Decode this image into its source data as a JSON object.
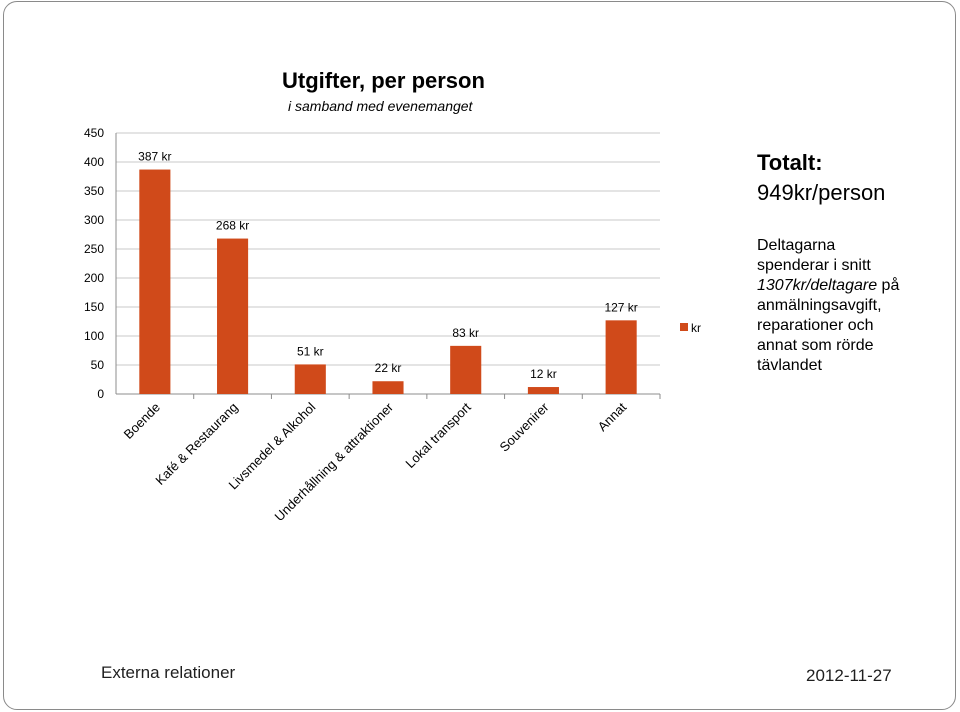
{
  "chart_data": {
    "type": "bar",
    "title": "Utgifter, per person",
    "subtitle": "i samband med evenemanget",
    "categories": [
      "Boende",
      "Kafé & Restaurang",
      "Livsmedel & Alkohol",
      "Underhållning & attraktioner",
      "Lokal transport",
      "Souvenirer",
      "Annat"
    ],
    "series": [
      {
        "name": "kr",
        "values": [
          387,
          268,
          51,
          22,
          83,
          12,
          127
        ]
      }
    ],
    "data_labels": [
      "387 kr",
      "268 kr",
      "51 kr",
      "22 kr",
      "83 kr",
      "12 kr",
      "127 kr"
    ],
    "ylim": [
      0,
      450
    ],
    "yticks": [
      0,
      50,
      100,
      150,
      200,
      250,
      300,
      350,
      400,
      450
    ],
    "grid": true,
    "legend": "right",
    "bar_color": "#d04a1a"
  },
  "side_panel": {
    "title": "Totalt:",
    "total": "949kr/person",
    "note_line1": "Deltagarna",
    "note_line2": "spenderar i snitt",
    "note_emph": "1307kr/deltagare",
    "note_line3": " på",
    "note_line4": "anmälningsavgift,",
    "note_line5": "reparationer och",
    "note_line6": "annat som rörde",
    "note_line7": "tävlandet"
  },
  "footer": {
    "left": "Externa relationer",
    "right": "2012-11-27"
  }
}
